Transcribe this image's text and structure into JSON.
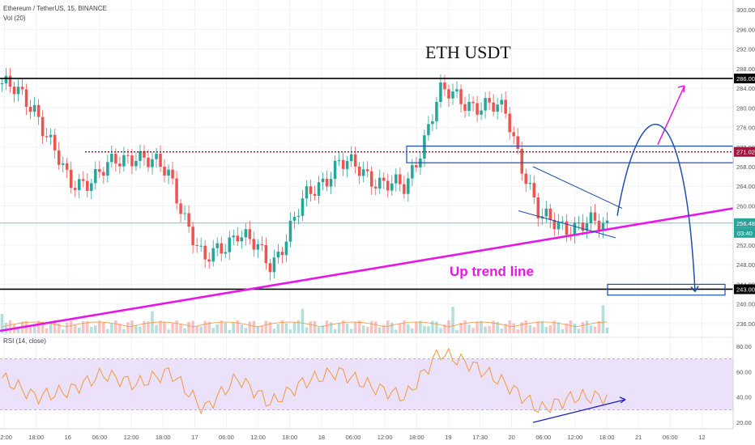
{
  "header": {
    "symbol_line": "Ethereum / TetherUS, 15, BINANCE",
    "volume_line": "Vol (20)",
    "rsi_line": "RSI (14, close)"
  },
  "annotations": {
    "title": "ETH USDT",
    "trend_label": "Up trend line"
  },
  "colors": {
    "up": "#26a69a",
    "down": "#ef5350",
    "trend": "#e815e8",
    "box": "#1e4fb0",
    "rsi_line": "#f09a40",
    "rsi_fill": "#ece1fb",
    "dotted": "#a0163c"
  },
  "price_badges": {
    "resistance": "286.00",
    "zone": "271.02",
    "last": "256.48",
    "countdown": "03:40",
    "support": "243.00"
  },
  "chart_data": [
    {
      "type": "line",
      "title": "",
      "description": "ETH/USDT 15-minute candlesticks approximated as close-price path",
      "x": [
        "12:00",
        "18:00",
        "16",
        "06:00",
        "12:00",
        "18:00",
        "17",
        "06:00",
        "12:00",
        "18:00",
        "18",
        "06:00",
        "12:00",
        "18:00",
        "19",
        "17:30",
        "20",
        "06:00",
        "12:00"
      ],
      "series": [
        {
          "values": [
            285,
            280,
            264,
            267,
            271,
            266,
            248,
            255,
            248,
            261,
            269,
            266,
            263,
            283,
            281,
            279,
            257,
            256,
            256
          ]
        }
      ],
      "ylim": [
        234,
        302
      ],
      "yticks": [
        236,
        240,
        244,
        248,
        252,
        256,
        260,
        264,
        268,
        272,
        276,
        280,
        284,
        288,
        292,
        296,
        300
      ],
      "ytick_labels": [
        "236.00",
        "240.00",
        "244.00",
        "248.00",
        "252.00",
        "256.00",
        "260.00",
        "264.00",
        "268.00",
        "272.00",
        "276.00",
        "280.00",
        "284.00",
        "288.00",
        "292.00",
        "296.00",
        "300.00"
      ],
      "xtick_labels": [
        "12:00",
        "18:00",
        "16",
        "06:00",
        "12:00",
        "18:00",
        "17",
        "06:00",
        "12:00",
        "18:00",
        "18",
        "06:00",
        "12:00",
        "18:00",
        "19",
        "17:30",
        "20",
        "06:00",
        "12:00",
        "18:00",
        "21",
        "06:00",
        "12"
      ],
      "horizontal_lines": [
        286,
        243,
        271.02
      ],
      "grid": true
    },
    {
      "type": "line",
      "title": "",
      "series": [
        {
          "name": "RSI (14, close)",
          "values": [
            55,
            40,
            45,
            58,
            50,
            60,
            30,
            55,
            35,
            52,
            60,
            48,
            40,
            75,
            65,
            50,
            30,
            40,
            40
          ]
        }
      ],
      "ylim": [
        15,
        85
      ],
      "yticks": [
        20,
        40,
        60,
        80
      ],
      "ytick_labels": [
        "20.00",
        "40.00",
        "60.00",
        "80.00"
      ],
      "bands": [
        30,
        70
      ]
    }
  ]
}
